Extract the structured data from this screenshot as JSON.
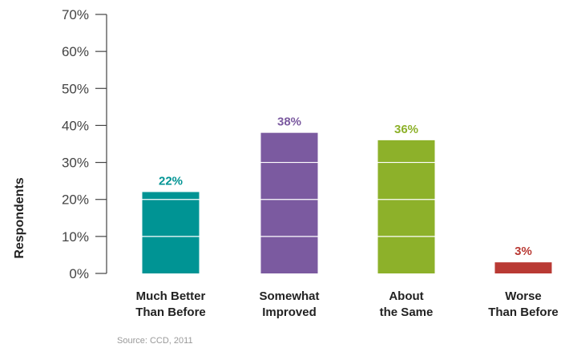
{
  "chart_data": {
    "type": "bar",
    "ylabel": "Respondents",
    "ylim": [
      0,
      70
    ],
    "y_ticks": [
      0,
      10,
      20,
      30,
      40,
      50,
      60,
      70
    ],
    "y_tick_labels": [
      "0%",
      "10%",
      "20%",
      "30%",
      "40%",
      "50%",
      "60%",
      "70%"
    ],
    "categories": [
      [
        "Much Better",
        "Than Before"
      ],
      [
        "Somewhat",
        "Improved"
      ],
      [
        "About",
        "the Same"
      ],
      [
        "Worse",
        "Than Before"
      ]
    ],
    "values": [
      22,
      38,
      36,
      3
    ],
    "value_labels": [
      "22%",
      "38%",
      "36%",
      "3%"
    ],
    "colors": [
      "#009494",
      "#7b5aa0",
      "#8db12a",
      "#b93a34"
    ],
    "grid": "white lines inside bars at each 10% tick",
    "source": "Source: CCD, 2011"
  }
}
